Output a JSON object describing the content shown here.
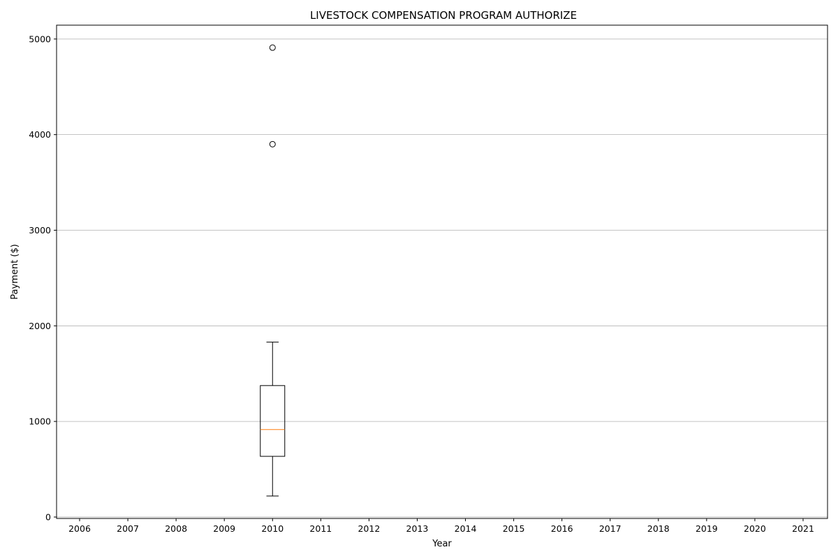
{
  "chart_data": {
    "type": "box",
    "title": "LIVESTOCK COMPENSATION PROGRAM AUTHORIZE",
    "xlabel": "Year",
    "ylabel": "Payment ($)",
    "categories": [
      "2006",
      "2007",
      "2008",
      "2009",
      "2010",
      "2011",
      "2012",
      "2013",
      "2014",
      "2015",
      "2016",
      "2017",
      "2018",
      "2019",
      "2020",
      "2021"
    ],
    "yticks": [
      0,
      1000,
      2000,
      3000,
      4000,
      5000
    ],
    "ylim": [
      -15,
      5145
    ],
    "grid": "y",
    "boxes": [
      {
        "category": "2010",
        "whisker_low": 220,
        "q1": 635,
        "median": 915,
        "q3": 1375,
        "whisker_high": 1830,
        "outliers": [
          3900,
          4910
        ]
      }
    ],
    "colors": {
      "box": "#000000",
      "median": "#ff7f0e",
      "grid": "#b0b0b0"
    }
  }
}
